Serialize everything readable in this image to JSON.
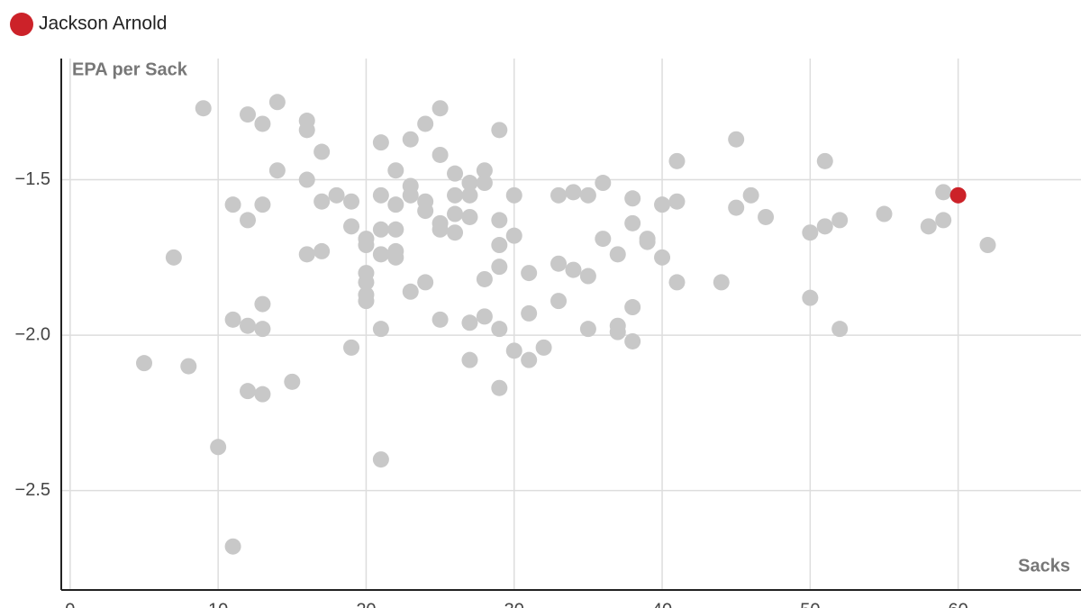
{
  "chart_data": {
    "type": "scatter",
    "x_label": "Sacks",
    "y_label": "EPA per Sack",
    "xlim": [
      -0.6,
      68.3
    ],
    "ylim": [
      -2.82,
      -1.11
    ],
    "xticks": [
      0,
      10,
      20,
      30,
      40,
      50,
      60
    ],
    "yticks": [
      {
        "value": -1.5,
        "label": "−1.5"
      },
      {
        "value": -2.0,
        "label": "−2.0"
      },
      {
        "value": -2.5,
        "label": "−2.5"
      }
    ],
    "grid": true,
    "legend": "top-left",
    "series": [
      {
        "color": "#c8c8c8",
        "x": [
          9,
          12,
          13,
          14,
          16,
          16,
          17,
          14,
          16,
          21,
          23,
          24,
          25,
          25,
          22,
          26,
          28,
          27,
          28,
          29,
          7,
          11,
          12,
          13,
          17,
          18,
          19,
          19,
          16,
          17,
          20,
          20,
          21,
          21,
          21,
          22,
          22,
          22,
          22,
          23,
          23,
          24,
          24,
          25,
          25,
          26,
          26,
          26,
          27,
          27,
          29,
          29,
          30,
          30,
          29,
          28,
          24,
          23,
          20,
          20,
          20,
          20,
          21,
          19,
          25,
          27,
          28,
          29,
          27,
          30,
          31,
          31,
          31,
          32,
          29,
          33,
          34,
          35,
          36,
          33,
          34,
          35,
          33,
          35,
          36,
          37,
          37,
          37,
          38,
          38,
          39,
          39,
          38,
          38,
          40,
          40,
          41,
          41,
          41,
          44,
          45,
          45,
          46,
          47,
          50,
          50,
          51,
          51,
          52,
          52,
          55,
          58,
          59,
          59,
          62,
          5,
          8,
          11,
          12,
          13,
          13,
          12,
          13,
          15,
          10,
          21,
          11
        ],
        "values": [
          -1.27,
          -1.29,
          -1.32,
          -1.25,
          -1.31,
          -1.34,
          -1.41,
          -1.47,
          -1.5,
          -1.38,
          -1.37,
          -1.32,
          -1.27,
          -1.42,
          -1.47,
          -1.48,
          -1.47,
          -1.51,
          -1.51,
          -1.34,
          -1.75,
          -1.58,
          -1.63,
          -1.58,
          -1.57,
          -1.55,
          -1.57,
          -1.65,
          -1.74,
          -1.73,
          -1.69,
          -1.71,
          -1.55,
          -1.66,
          -1.74,
          -1.58,
          -1.66,
          -1.73,
          -1.75,
          -1.52,
          -1.55,
          -1.57,
          -1.6,
          -1.64,
          -1.66,
          -1.55,
          -1.61,
          -1.67,
          -1.55,
          -1.62,
          -1.63,
          -1.71,
          -1.55,
          -1.68,
          -1.78,
          -1.82,
          -1.83,
          -1.86,
          -1.8,
          -1.83,
          -1.87,
          -1.89,
          -1.98,
          -2.04,
          -1.95,
          -1.96,
          -1.94,
          -1.98,
          -2.08,
          -2.05,
          -1.8,
          -1.93,
          -2.08,
          -2.04,
          -2.17,
          -1.55,
          -1.54,
          -1.55,
          -1.51,
          -1.77,
          -1.79,
          -1.81,
          -1.89,
          -1.98,
          -1.69,
          -1.74,
          -1.97,
          -1.99,
          -1.56,
          -1.64,
          -1.69,
          -1.7,
          -1.91,
          -2.02,
          -1.58,
          -1.75,
          -1.44,
          -1.57,
          -1.83,
          -1.83,
          -1.37,
          -1.59,
          -1.55,
          -1.62,
          -1.67,
          -1.88,
          -1.44,
          -1.65,
          -1.63,
          -1.98,
          -1.61,
          -1.65,
          -1.54,
          -1.63,
          -1.71,
          -2.09,
          -2.1,
          -1.95,
          -1.97,
          -1.9,
          -1.98,
          -2.18,
          -2.19,
          -2.15,
          -2.36,
          -2.4,
          -2.68
        ]
      },
      {
        "name": "Jackson Arnold",
        "color": "#cc2229",
        "x": [
          60
        ],
        "values": [
          -1.55
        ]
      }
    ]
  }
}
